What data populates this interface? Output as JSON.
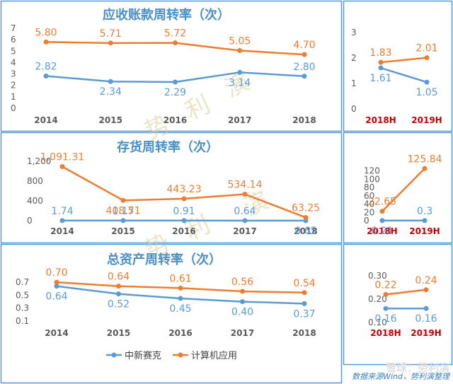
{
  "colors": {
    "blue": "#5b9bd5",
    "orange": "#ed7d31",
    "title": "#4a90c8",
    "border": "#5b9bd5",
    "axis_text": "#595959",
    "half_label": "#c00000",
    "watermark": "#d9cf9a",
    "footer": "#3b7fc4"
  },
  "legend": {
    "blue": "中新赛克",
    "orange": "计算机应用"
  },
  "watermark": {
    "chars": [
      "势",
      "利",
      "演"
    ]
  },
  "footer": {
    "text": "数据来源Wind，势利演整理",
    "brand": "雪球：势利演"
  },
  "chart_data": [
    {
      "id": "receivables-annual",
      "type": "line",
      "title": "应收账款周转率（次）",
      "categories": [
        "2014",
        "2015",
        "2016",
        "2017",
        "2018"
      ],
      "ylim": [
        0,
        7
      ],
      "yticks": [
        "0",
        "1",
        "2",
        "3",
        "4",
        "5",
        "6",
        "7"
      ],
      "series": [
        {
          "name": "中新赛克",
          "values": [
            2.82,
            2.34,
            2.29,
            3.14,
            2.8
          ],
          "labels": [
            "2.82",
            "2.34",
            "2.29",
            "3.14",
            "2.80"
          ]
        },
        {
          "name": "计算机应用",
          "values": [
            5.8,
            5.71,
            5.72,
            5.05,
            4.7
          ],
          "labels": [
            "5.80",
            "5.71",
            "5.72",
            "5.05",
            "4.70"
          ]
        }
      ]
    },
    {
      "id": "receivables-half",
      "type": "line",
      "title": "",
      "categories": [
        "2018H",
        "2019H"
      ],
      "ylim": [
        0,
        3
      ],
      "yticks": [
        "0",
        "1",
        "2",
        "3"
      ],
      "series": [
        {
          "name": "中新赛克",
          "values": [
            1.61,
            1.05
          ],
          "labels": [
            "1.61",
            "1.05"
          ]
        },
        {
          "name": "计算机应用",
          "values": [
            1.83,
            2.01
          ],
          "labels": [
            "1.83",
            "2.01"
          ]
        }
      ]
    },
    {
      "id": "inventory-annual",
      "type": "line",
      "title": "存货周转率（次）",
      "categories": [
        "2014",
        "2015",
        "2016",
        "2017",
        "2018"
      ],
      "ylim": [
        0,
        1200
      ],
      "yticks": [
        "0",
        "400",
        "800",
        "1,200"
      ],
      "series": [
        {
          "name": "中新赛克",
          "values": [
            1.74,
            1.17,
            0.91,
            0.64,
            0.65
          ],
          "labels": [
            "1.74",
            "1.17",
            "0.91",
            "0.64",
            "0.65"
          ]
        },
        {
          "name": "计算机应用",
          "values": [
            1091.31,
            408.51,
            443.23,
            534.14,
            63.25
          ],
          "labels": [
            "1,091.31",
            "408.51",
            "443.23",
            "534.14",
            "63.25"
          ]
        }
      ]
    },
    {
      "id": "inventory-half",
      "type": "line",
      "title": "",
      "categories": [
        "2018H",
        "2019H"
      ],
      "ylim": [
        0,
        140
      ],
      "yticks": [
        "0",
        "20",
        "40",
        "60",
        "80",
        "100",
        "120"
      ],
      "series": [
        {
          "name": "中新赛克",
          "values": [
            0.21,
            0.3
          ],
          "labels": [
            "0.21",
            "0.3"
          ]
        },
        {
          "name": "计算机应用",
          "values": [
            22.65,
            125.84
          ],
          "labels": [
            "22.65",
            "125.84"
          ]
        }
      ]
    },
    {
      "id": "total-assets-annual",
      "type": "line",
      "title": "总资产周转率（次）",
      "categories": [
        "2014",
        "2015",
        "2016",
        "2017",
        "2018"
      ],
      "ylim": [
        0.1,
        0.8
      ],
      "yticks": [
        "0.1",
        "0.3",
        "0.5",
        "0.7"
      ],
      "series": [
        {
          "name": "中新赛克",
          "values": [
            0.64,
            0.52,
            0.45,
            0.4,
            0.37
          ],
          "labels": [
            "0.64",
            "0.52",
            "0.45",
            "0.40",
            "0.37"
          ]
        },
        {
          "name": "计算机应用",
          "values": [
            0.7,
            0.64,
            0.61,
            0.56,
            0.54
          ],
          "labels": [
            "0.70",
            "0.64",
            "0.61",
            "0.56",
            "0.54"
          ]
        }
      ]
    },
    {
      "id": "total-assets-half",
      "type": "line",
      "title": "",
      "categories": [
        "2018H",
        "2019H"
      ],
      "ylim": [
        0.1,
        0.3
      ],
      "yticks": [
        "0.10",
        "0.20",
        "0.30"
      ],
      "series": [
        {
          "name": "中新赛克",
          "values": [
            0.16,
            0.16
          ],
          "labels": [
            "0.16",
            "0.16"
          ]
        },
        {
          "name": "计算机应用",
          "values": [
            0.22,
            0.24
          ],
          "labels": [
            "0.22",
            "0.24"
          ]
        }
      ]
    }
  ]
}
